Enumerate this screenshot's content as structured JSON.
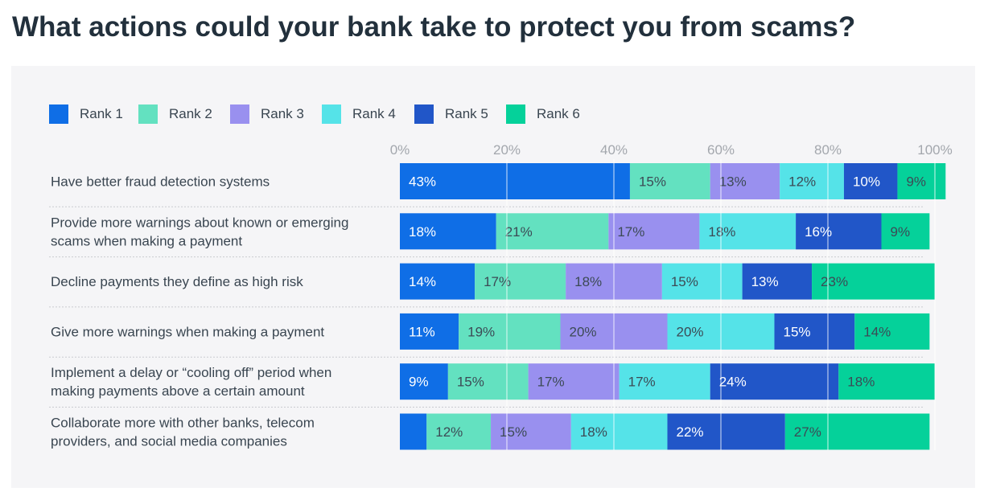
{
  "title": "What actions could your bank take to protect you from scams?",
  "colors": {
    "Rank 1": "#0f6ee6",
    "Rank 2": "#63e1c0",
    "Rank 3": "#9990ef",
    "Rank 4": "#55e3e8",
    "Rank 5": "#2156c8",
    "Rank 6": "#05d19a",
    "panel_bg": "#f5f5f7",
    "title_text": "#22303c",
    "label_text": "#394550",
    "tick_text": "#a3a7ad"
  },
  "chart_data": {
    "type": "bar",
    "orientation": "horizontal",
    "stacked": true,
    "title": "What actions could your bank take to protect you from scams?",
    "xlabel": "",
    "ylabel": "",
    "xlim": [
      0,
      100
    ],
    "x_ticks": [
      "0%",
      "20%",
      "40%",
      "60%",
      "80%",
      "100%"
    ],
    "x_tick_values": [
      0,
      20,
      40,
      60,
      80,
      100
    ],
    "grid": true,
    "legend_position": "top-left",
    "categories": [
      [
        "Have better fraud detection systems"
      ],
      [
        "Provide more warnings about known or emerging",
        "scams when making a payment"
      ],
      [
        "Decline payments they define as high risk"
      ],
      [
        "Give more warnings when making a payment"
      ],
      [
        "Implement a delay or “cooling off” period when",
        "making payments above a certain amount"
      ],
      [
        "Collaborate more with other banks, telecom",
        "providers, and social media companies"
      ]
    ],
    "series": [
      {
        "name": "Rank 1",
        "values": [
          43,
          18,
          14,
          11,
          9,
          5
        ],
        "labels": [
          "43%",
          "18%",
          "14%",
          "11%",
          "9%",
          ""
        ]
      },
      {
        "name": "Rank 2",
        "values": [
          15,
          21,
          17,
          19,
          15,
          12
        ],
        "labels": [
          "15%",
          "21%",
          "17%",
          "19%",
          "15%",
          "12%"
        ]
      },
      {
        "name": "Rank 3",
        "values": [
          13,
          17,
          18,
          20,
          17,
          15
        ],
        "labels": [
          "13%",
          "17%",
          "18%",
          "20%",
          "17%",
          "15%"
        ]
      },
      {
        "name": "Rank 4",
        "values": [
          12,
          18,
          15,
          20,
          17,
          18
        ],
        "labels": [
          "12%",
          "18%",
          "15%",
          "20%",
          "17%",
          "18%"
        ]
      },
      {
        "name": "Rank 5",
        "values": [
          10,
          16,
          13,
          15,
          24,
          22
        ],
        "labels": [
          "10%",
          "16%",
          "13%",
          "15%",
          "24%",
          "22%"
        ]
      },
      {
        "name": "Rank 6",
        "values": [
          9,
          9,
          23,
          14,
          18,
          27
        ],
        "labels": [
          "9%",
          "9%",
          "23%",
          "14%",
          "18%",
          "27%"
        ]
      }
    ]
  }
}
